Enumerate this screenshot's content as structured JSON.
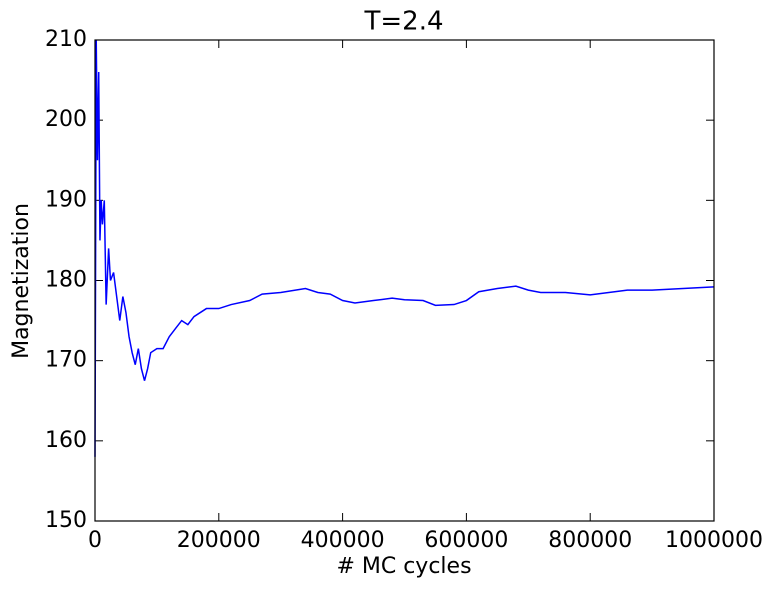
{
  "chart_data": {
    "type": "line",
    "title": "T=2.4",
    "xlabel": "# MC cycles",
    "ylabel": "Magnetization",
    "x": [
      0,
      2000,
      4000,
      6000,
      8000,
      10000,
      12000,
      15000,
      18000,
      22000,
      25000,
      30000,
      35000,
      40000,
      45000,
      50000,
      55000,
      60000,
      65000,
      70000,
      75000,
      80000,
      85000,
      90000,
      100000,
      110000,
      120000,
      130000,
      140000,
      150000,
      160000,
      180000,
      200000,
      220000,
      250000,
      270000,
      300000,
      340000,
      360000,
      380000,
      400000,
      420000,
      450000,
      480000,
      500000,
      530000,
      550000,
      580000,
      600000,
      620000,
      650000,
      680000,
      700000,
      720000,
      760000,
      800000,
      830000,
      860000,
      900000,
      950000,
      1000000
    ],
    "series": [
      {
        "name": "Magnetization",
        "color": "#0000ff",
        "values": [
          158,
          210,
          195,
          206,
          185,
          190,
          187,
          190,
          177,
          184,
          180,
          181,
          178,
          175,
          178,
          176,
          173,
          171,
          169.5,
          171.5,
          169,
          167.5,
          169,
          171,
          171.5,
          171.5,
          173,
          174,
          175,
          174.5,
          175.5,
          176.5,
          176.5,
          177,
          177.5,
          178.3,
          178.5,
          179,
          178.5,
          178.3,
          177.5,
          177.2,
          177.5,
          177.8,
          177.6,
          177.5,
          176.9,
          177,
          177.5,
          178.6,
          179,
          179.3,
          178.8,
          178.5,
          178.5,
          178.2,
          178.5,
          178.8,
          178.8,
          179,
          179.2
        ]
      }
    ],
    "xlim": [
      0,
      1000000
    ],
    "xticks": [
      0,
      200000,
      400000,
      600000,
      800000,
      1000000
    ],
    "ylim": [
      150,
      210
    ],
    "yticks": [
      150,
      160,
      170,
      180,
      190,
      200,
      210
    ],
    "grid": false
  }
}
